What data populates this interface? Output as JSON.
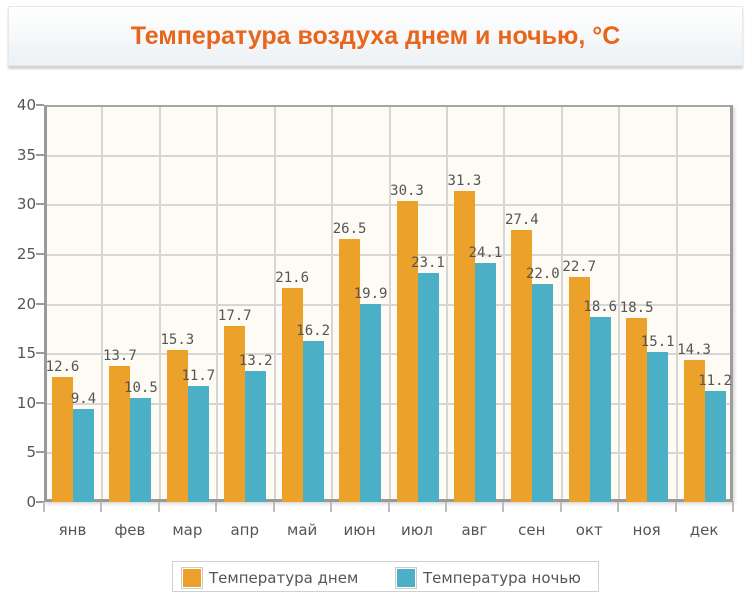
{
  "title": "Температура воздуха днем и ночью, °C",
  "colors": {
    "day": "#eba12a",
    "night": "#4bb0c6",
    "title": "#e8661b"
  },
  "legend": [
    {
      "label": "Температура днем",
      "color": "#eba12a"
    },
    {
      "label": "Температура ночью",
      "color": "#4bb0c6"
    }
  ],
  "chart_data": {
    "type": "bar",
    "title": "Температура воздуха днем и ночью, °C",
    "xlabel": "",
    "ylabel": "",
    "ylim": [
      0,
      40
    ],
    "yticks": [
      0,
      5,
      10,
      15,
      20,
      25,
      30,
      35,
      40
    ],
    "grid": true,
    "legend_position": "bottom",
    "categories": [
      "янв",
      "фев",
      "мар",
      "апр",
      "май",
      "июн",
      "июл",
      "авг",
      "сен",
      "окт",
      "ноя",
      "дек"
    ],
    "series": [
      {
        "name": "Температура днем",
        "values": [
          12.6,
          13.7,
          15.3,
          17.7,
          21.6,
          26.5,
          30.3,
          31.3,
          27.4,
          22.7,
          18.5,
          14.3
        ]
      },
      {
        "name": "Температура ночью",
        "values": [
          9.4,
          10.5,
          11.7,
          13.2,
          16.2,
          19.9,
          23.1,
          24.1,
          22.0,
          18.6,
          15.1,
          11.2
        ]
      }
    ]
  }
}
